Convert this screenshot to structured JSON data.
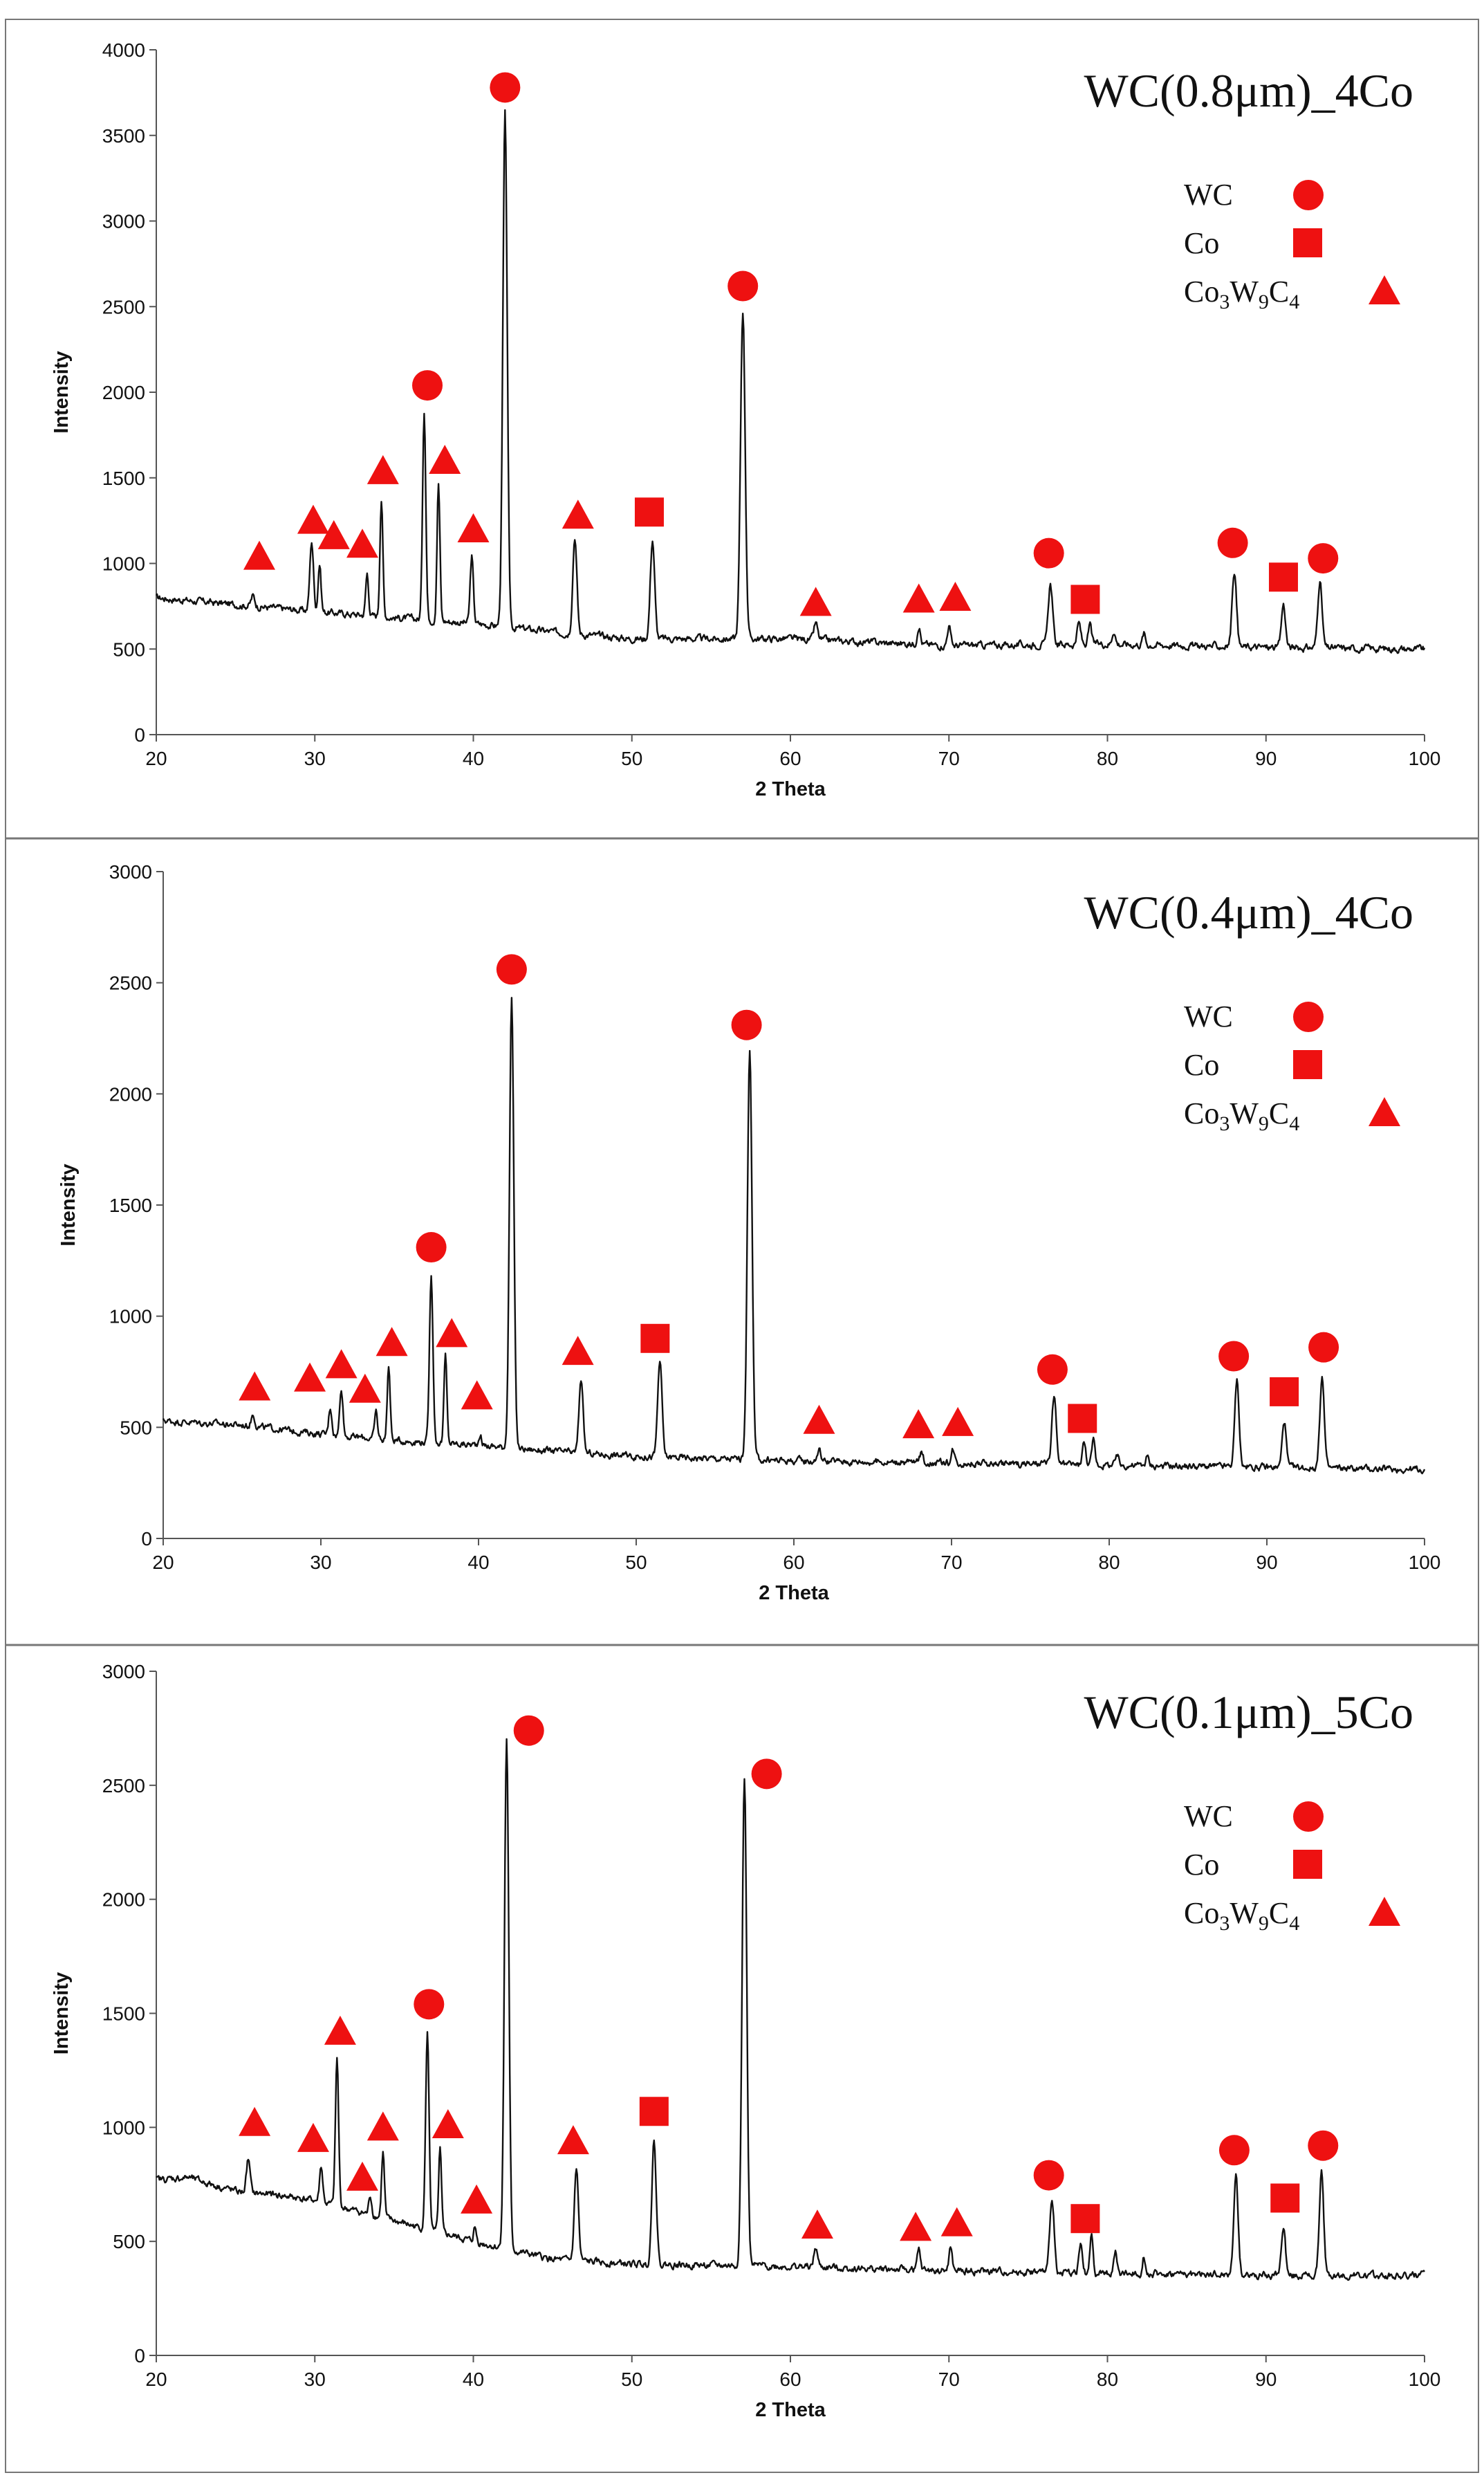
{
  "colors": {
    "marker": "#ee1111",
    "trace": "#111111",
    "axis": "#555555",
    "frame": "#777777"
  },
  "legend": {
    "wc": "WC",
    "co": "Co",
    "co3_base_a": "Co",
    "co3_sub_a": "3",
    "co3_base_b": "W",
    "co3_sub_b": "9",
    "co3_base_c": "C",
    "co3_sub_c": "4"
  },
  "chart_data": [
    {
      "type": "line",
      "title": "WC(0.8μm)_4Co",
      "xlabel": "2 Theta",
      "ylabel": "Intensity",
      "xlim": [
        20,
        100
      ],
      "ylim": [
        0,
        4000
      ],
      "xticks": [
        20,
        30,
        40,
        50,
        60,
        70,
        80,
        90,
        100
      ],
      "yticks": [
        0,
        500,
        1000,
        1500,
        2000,
        2500,
        3000,
        3500,
        4000
      ],
      "baseline": [
        [
          20,
          800
        ],
        [
          25,
          760
        ],
        [
          30,
          720
        ],
        [
          40,
          650
        ],
        [
          45,
          600
        ],
        [
          50,
          560
        ],
        [
          60,
          560
        ],
        [
          70,
          520
        ],
        [
          80,
          530
        ],
        [
          90,
          510
        ],
        [
          100,
          500
        ]
      ],
      "peaks": [
        {
          "x": 26.1,
          "y": 810,
          "w": 0.25
        },
        {
          "x": 29.8,
          "y": 1130,
          "w": 0.25
        },
        {
          "x": 30.3,
          "y": 1000,
          "w": 0.2
        },
        {
          "x": 33.3,
          "y": 940,
          "w": 0.2
        },
        {
          "x": 34.2,
          "y": 1380,
          "w": 0.2
        },
        {
          "x": 36.9,
          "y": 1900,
          "w": 0.22
        },
        {
          "x": 37.8,
          "y": 1470,
          "w": 0.2
        },
        {
          "x": 39.9,
          "y": 1040,
          "w": 0.22
        },
        {
          "x": 42.0,
          "y": 3620,
          "w": 0.3
        },
        {
          "x": 46.4,
          "y": 1160,
          "w": 0.28
        },
        {
          "x": 51.3,
          "y": 1140,
          "w": 0.3
        },
        {
          "x": 57.0,
          "y": 2480,
          "w": 0.32
        },
        {
          "x": 61.6,
          "y": 650,
          "w": 0.25
        },
        {
          "x": 68.1,
          "y": 640,
          "w": 0.22
        },
        {
          "x": 70.0,
          "y": 640,
          "w": 0.22
        },
        {
          "x": 76.4,
          "y": 880,
          "w": 0.3
        },
        {
          "x": 78.2,
          "y": 650,
          "w": 0.25
        },
        {
          "x": 78.9,
          "y": 640,
          "w": 0.22
        },
        {
          "x": 80.4,
          "y": 610,
          "w": 0.22
        },
        {
          "x": 82.3,
          "y": 590,
          "w": 0.2
        },
        {
          "x": 88.0,
          "y": 960,
          "w": 0.3
        },
        {
          "x": 91.1,
          "y": 760,
          "w": 0.28
        },
        {
          "x": 93.4,
          "y": 900,
          "w": 0.3
        }
      ],
      "markers": [
        {
          "shape": "triangle",
          "x": 26.5,
          "y": 1040
        },
        {
          "shape": "triangle",
          "x": 29.9,
          "y": 1250
        },
        {
          "shape": "triangle",
          "x": 31.2,
          "y": 1160
        },
        {
          "shape": "triangle",
          "x": 33.0,
          "y": 1110
        },
        {
          "shape": "triangle",
          "x": 34.3,
          "y": 1540
        },
        {
          "shape": "circle",
          "x": 37.1,
          "y": 2040
        },
        {
          "shape": "triangle",
          "x": 38.2,
          "y": 1600
        },
        {
          "shape": "triangle",
          "x": 40.0,
          "y": 1200
        },
        {
          "shape": "circle",
          "x": 42.0,
          "y": 3780
        },
        {
          "shape": "triangle",
          "x": 46.6,
          "y": 1280
        },
        {
          "shape": "square",
          "x": 51.1,
          "y": 1300
        },
        {
          "shape": "circle",
          "x": 57.0,
          "y": 2620
        },
        {
          "shape": "triangle",
          "x": 61.6,
          "y": 770
        },
        {
          "shape": "triangle",
          "x": 68.1,
          "y": 790
        },
        {
          "shape": "triangle",
          "x": 70.4,
          "y": 800
        },
        {
          "shape": "circle",
          "x": 76.3,
          "y": 1060
        },
        {
          "shape": "square",
          "x": 78.6,
          "y": 790
        },
        {
          "shape": "circle",
          "x": 87.9,
          "y": 1120
        },
        {
          "shape": "square",
          "x": 91.1,
          "y": 920
        },
        {
          "shape": "circle",
          "x": 93.6,
          "y": 1030
        }
      ]
    },
    {
      "type": "line",
      "title": "WC(0.4μm)_4Co",
      "xlabel": "2 Theta",
      "ylabel": "Intensity",
      "xlim": [
        20,
        100
      ],
      "ylim": [
        0,
        3000
      ],
      "xticks": [
        20,
        30,
        40,
        50,
        60,
        70,
        80,
        90,
        100
      ],
      "yticks": [
        0,
        500,
        1000,
        1500,
        2000,
        2500,
        3000
      ],
      "baseline": [
        [
          20,
          530
        ],
        [
          25,
          510
        ],
        [
          30,
          470
        ],
        [
          35,
          440
        ],
        [
          40,
          420
        ],
        [
          45,
          390
        ],
        [
          50,
          370
        ],
        [
          60,
          350
        ],
        [
          70,
          340
        ],
        [
          80,
          330
        ],
        [
          90,
          320
        ],
        [
          100,
          310
        ]
      ],
      "peaks": [
        {
          "x": 25.7,
          "y": 560,
          "w": 0.25
        },
        {
          "x": 30.6,
          "y": 590,
          "w": 0.22
        },
        {
          "x": 31.3,
          "y": 680,
          "w": 0.22
        },
        {
          "x": 33.5,
          "y": 570,
          "w": 0.2
        },
        {
          "x": 34.3,
          "y": 780,
          "w": 0.2
        },
        {
          "x": 37.0,
          "y": 1190,
          "w": 0.24
        },
        {
          "x": 37.9,
          "y": 820,
          "w": 0.2
        },
        {
          "x": 40.1,
          "y": 470,
          "w": 0.2
        },
        {
          "x": 42.1,
          "y": 2420,
          "w": 0.3
        },
        {
          "x": 46.5,
          "y": 720,
          "w": 0.28
        },
        {
          "x": 51.5,
          "y": 800,
          "w": 0.3
        },
        {
          "x": 57.2,
          "y": 2210,
          "w": 0.32
        },
        {
          "x": 61.6,
          "y": 400,
          "w": 0.25
        },
        {
          "x": 68.1,
          "y": 390,
          "w": 0.22
        },
        {
          "x": 70.1,
          "y": 400,
          "w": 0.22
        },
        {
          "x": 76.5,
          "y": 640,
          "w": 0.3
        },
        {
          "x": 78.4,
          "y": 430,
          "w": 0.25
        },
        {
          "x": 79.0,
          "y": 440,
          "w": 0.22
        },
        {
          "x": 80.5,
          "y": 370,
          "w": 0.22
        },
        {
          "x": 82.4,
          "y": 370,
          "w": 0.2
        },
        {
          "x": 88.1,
          "y": 710,
          "w": 0.3
        },
        {
          "x": 91.1,
          "y": 530,
          "w": 0.28
        },
        {
          "x": 93.5,
          "y": 730,
          "w": 0.3
        }
      ],
      "markers": [
        {
          "shape": "triangle",
          "x": 25.8,
          "y": 680
        },
        {
          "shape": "triangle",
          "x": 29.3,
          "y": 720
        },
        {
          "shape": "triangle",
          "x": 31.3,
          "y": 780
        },
        {
          "shape": "triangle",
          "x": 32.8,
          "y": 670
        },
        {
          "shape": "triangle",
          "x": 34.5,
          "y": 880
        },
        {
          "shape": "circle",
          "x": 37.0,
          "y": 1310
        },
        {
          "shape": "triangle",
          "x": 38.3,
          "y": 920
        },
        {
          "shape": "triangle",
          "x": 39.9,
          "y": 640
        },
        {
          "shape": "circle",
          "x": 42.1,
          "y": 2560
        },
        {
          "shape": "triangle",
          "x": 46.3,
          "y": 840
        },
        {
          "shape": "square",
          "x": 51.2,
          "y": 900
        },
        {
          "shape": "circle",
          "x": 57.0,
          "y": 2310
        },
        {
          "shape": "triangle",
          "x": 61.6,
          "y": 530
        },
        {
          "shape": "triangle",
          "x": 67.9,
          "y": 510
        },
        {
          "shape": "triangle",
          "x": 70.4,
          "y": 520
        },
        {
          "shape": "circle",
          "x": 76.4,
          "y": 760
        },
        {
          "shape": "square",
          "x": 78.3,
          "y": 540
        },
        {
          "shape": "circle",
          "x": 87.9,
          "y": 820
        },
        {
          "shape": "square",
          "x": 91.1,
          "y": 660
        },
        {
          "shape": "circle",
          "x": 93.6,
          "y": 860
        }
      ]
    },
    {
      "type": "line",
      "title": "WC(0.1μm)_5Co",
      "xlabel": "2 Theta",
      "ylabel": "Intensity",
      "xlim": [
        20,
        100
      ],
      "ylim": [
        0,
        3000
      ],
      "xticks": [
        20,
        30,
        40,
        50,
        60,
        70,
        80,
        90,
        100
      ],
      "yticks": [
        0,
        500,
        1000,
        1500,
        2000,
        2500,
        3000
      ],
      "baseline": [
        [
          20,
          770
        ],
        [
          22,
          780
        ],
        [
          25,
          720
        ],
        [
          28,
          700
        ],
        [
          30,
          680
        ],
        [
          35,
          590
        ],
        [
          40,
          500
        ],
        [
          45,
          420
        ],
        [
          50,
          400
        ],
        [
          60,
          390
        ],
        [
          70,
          370
        ],
        [
          80,
          360
        ],
        [
          90,
          350
        ],
        [
          100,
          350
        ]
      ],
      "peaks": [
        {
          "x": 25.8,
          "y": 860,
          "w": 0.25
        },
        {
          "x": 30.4,
          "y": 830,
          "w": 0.22
        },
        {
          "x": 31.4,
          "y": 1300,
          "w": 0.22
        },
        {
          "x": 33.5,
          "y": 700,
          "w": 0.2
        },
        {
          "x": 34.3,
          "y": 890,
          "w": 0.2
        },
        {
          "x": 37.1,
          "y": 1410,
          "w": 0.24
        },
        {
          "x": 37.9,
          "y": 900,
          "w": 0.2
        },
        {
          "x": 40.1,
          "y": 560,
          "w": 0.2
        },
        {
          "x": 42.1,
          "y": 2700,
          "w": 0.3
        },
        {
          "x": 46.5,
          "y": 820,
          "w": 0.28
        },
        {
          "x": 51.4,
          "y": 950,
          "w": 0.3
        },
        {
          "x": 57.1,
          "y": 2530,
          "w": 0.32
        },
        {
          "x": 61.6,
          "y": 470,
          "w": 0.25
        },
        {
          "x": 68.1,
          "y": 460,
          "w": 0.22
        },
        {
          "x": 70.1,
          "y": 470,
          "w": 0.22
        },
        {
          "x": 76.5,
          "y": 690,
          "w": 0.3
        },
        {
          "x": 78.3,
          "y": 480,
          "w": 0.25
        },
        {
          "x": 79.0,
          "y": 520,
          "w": 0.22
        },
        {
          "x": 80.5,
          "y": 450,
          "w": 0.22
        },
        {
          "x": 82.3,
          "y": 440,
          "w": 0.2
        },
        {
          "x": 88.1,
          "y": 790,
          "w": 0.3
        },
        {
          "x": 91.1,
          "y": 570,
          "w": 0.28
        },
        {
          "x": 93.5,
          "y": 800,
          "w": 0.3
        }
      ],
      "markers": [
        {
          "shape": "triangle",
          "x": 26.2,
          "y": 1020
        },
        {
          "shape": "triangle",
          "x": 29.9,
          "y": 950
        },
        {
          "shape": "triangle",
          "x": 31.6,
          "y": 1420
        },
        {
          "shape": "triangle",
          "x": 33.0,
          "y": 780
        },
        {
          "shape": "triangle",
          "x": 34.3,
          "y": 1000
        },
        {
          "shape": "circle",
          "x": 37.2,
          "y": 1540
        },
        {
          "shape": "triangle",
          "x": 38.4,
          "y": 1010
        },
        {
          "shape": "triangle",
          "x": 40.2,
          "y": 680
        },
        {
          "shape": "circle",
          "x": 43.5,
          "y": 2740
        },
        {
          "shape": "triangle",
          "x": 46.3,
          "y": 940
        },
        {
          "shape": "square",
          "x": 51.4,
          "y": 1070
        },
        {
          "shape": "circle",
          "x": 58.5,
          "y": 2550
        },
        {
          "shape": "triangle",
          "x": 61.7,
          "y": 570
        },
        {
          "shape": "triangle",
          "x": 67.9,
          "y": 560
        },
        {
          "shape": "triangle",
          "x": 70.5,
          "y": 580
        },
        {
          "shape": "circle",
          "x": 76.3,
          "y": 790
        },
        {
          "shape": "square",
          "x": 78.6,
          "y": 600
        },
        {
          "shape": "circle",
          "x": 88.0,
          "y": 900
        },
        {
          "shape": "square",
          "x": 91.2,
          "y": 690
        },
        {
          "shape": "circle",
          "x": 93.6,
          "y": 920
        }
      ]
    }
  ]
}
